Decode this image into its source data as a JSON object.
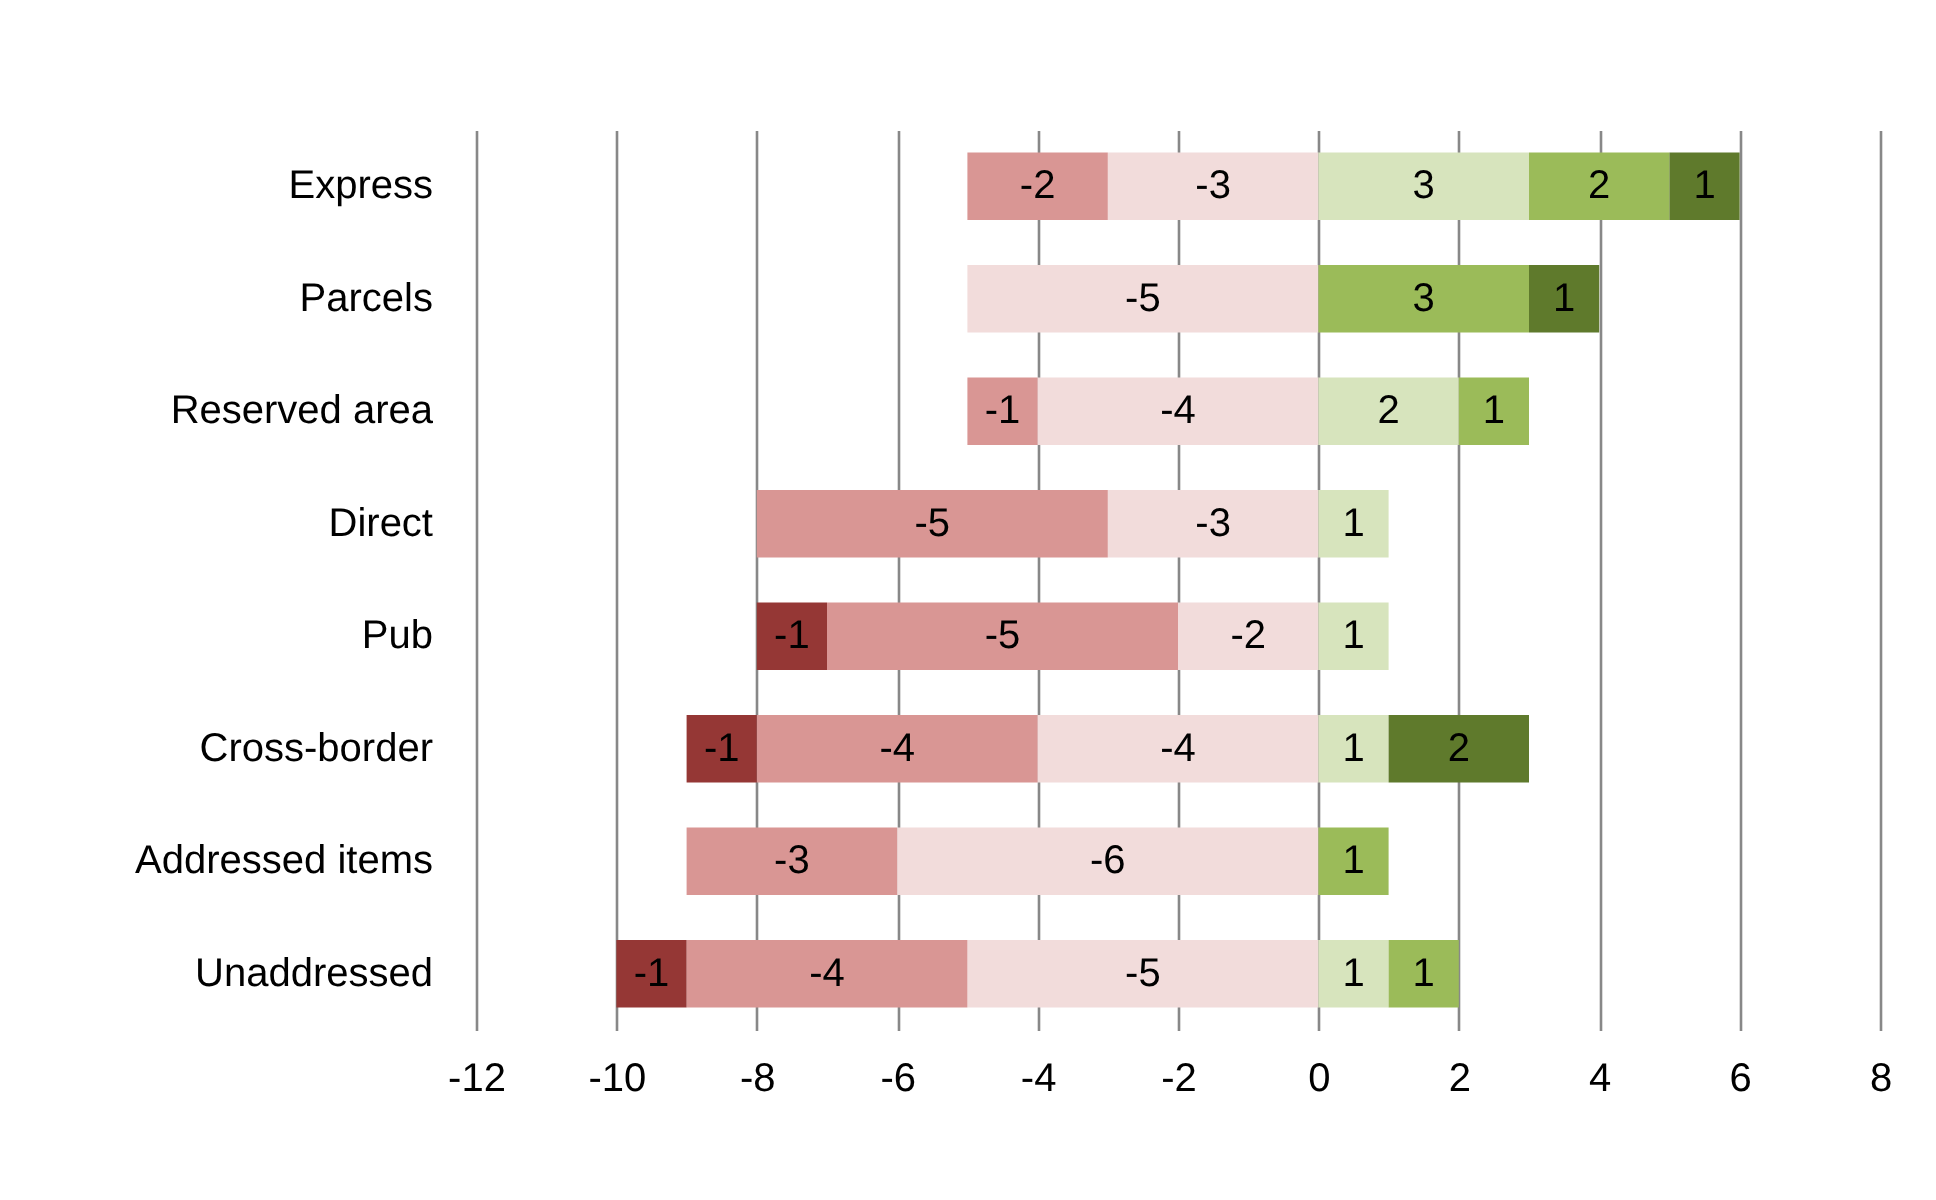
{
  "chart_data": {
    "type": "bar",
    "orientation": "horizontal",
    "stacked": true,
    "categories": [
      "Express",
      "Parcels",
      "Reserved area",
      "Direct",
      "Pub",
      "Cross-border",
      "Addressed items",
      "Unaddressed"
    ],
    "series": [
      {
        "color": "#f2dcdb",
        "values": [
          -3,
          -5,
          -4,
          -3,
          -2,
          -4,
          -6,
          -5
        ]
      },
      {
        "color": "#d99694",
        "values": [
          -2,
          null,
          -1,
          -5,
          -5,
          -4,
          -3,
          -4
        ]
      },
      {
        "color": "#953735",
        "values": [
          null,
          null,
          null,
          null,
          -1,
          -1,
          null,
          -1
        ]
      },
      {
        "color": "#d7e4bd",
        "values": [
          3,
          null,
          2,
          1,
          1,
          1,
          null,
          1
        ]
      },
      {
        "color": "#9bbb59",
        "values": [
          2,
          3,
          1,
          null,
          null,
          null,
          1,
          1
        ]
      },
      {
        "color": "#5f7a2c",
        "values": [
          1,
          1,
          null,
          null,
          null,
          2,
          null,
          null
        ]
      }
    ],
    "xlim": [
      -12,
      8
    ],
    "xticks": [
      -12,
      -10,
      -8,
      -6,
      -4,
      -2,
      0,
      2,
      4,
      6,
      8
    ],
    "grid": "x",
    "data_labels": true
  }
}
